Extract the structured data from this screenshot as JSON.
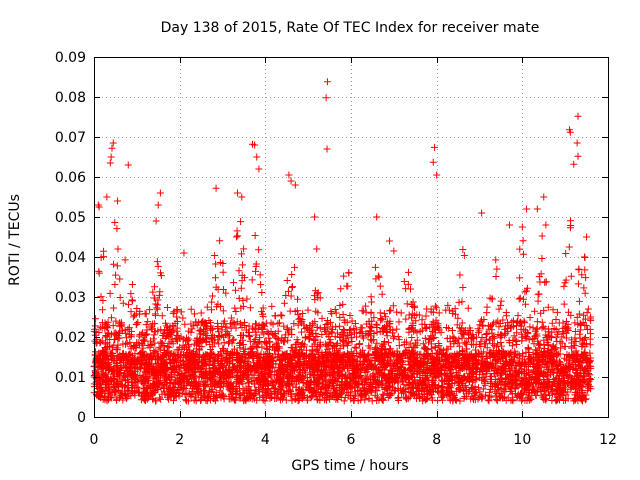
{
  "chart_data": {
    "type": "scatter",
    "title": "Day 138 of 2015, Rate Of TEC Index for receiver mate",
    "xlabel": "GPS time / hours",
    "ylabel": "ROTI / TECUs",
    "xlim": [
      0,
      12
    ],
    "ylim": [
      0,
      0.09
    ],
    "xticks": [
      0,
      2,
      4,
      6,
      8,
      10,
      12
    ],
    "xtick_labels": [
      "0",
      "2",
      "4",
      "6",
      "8",
      "10",
      "12"
    ],
    "yticks": [
      0,
      0.01,
      0.02,
      0.03,
      0.04,
      0.05,
      0.06,
      0.07,
      0.08,
      0.09
    ],
    "ytick_labels": [
      "0",
      "0.01",
      "0.02",
      "0.03",
      "0.04",
      "0.05",
      "0.06",
      "0.07",
      "0.08",
      "0.09"
    ],
    "grid": true,
    "marker": "+",
    "color": "#ff0000",
    "x_range_of_data": [
      0.0,
      11.6
    ],
    "series": [
      {
        "name": "ROTI",
        "points": [
          [
            5.45,
            0.0838
          ],
          [
            5.42,
            0.0798
          ],
          [
            5.44,
            0.067
          ],
          [
            11.3,
            0.0752
          ],
          [
            11.1,
            0.0718
          ],
          [
            11.12,
            0.0712
          ],
          [
            11.28,
            0.0685
          ],
          [
            11.3,
            0.0652
          ],
          [
            11.2,
            0.0632
          ],
          [
            7.95,
            0.0674
          ],
          [
            7.92,
            0.0637
          ],
          [
            8.0,
            0.0605
          ],
          [
            0.45,
            0.0685
          ],
          [
            0.42,
            0.0672
          ],
          [
            0.4,
            0.065
          ],
          [
            0.38,
            0.0635
          ],
          [
            0.8,
            0.063
          ],
          [
            3.7,
            0.0682
          ],
          [
            3.75,
            0.068
          ],
          [
            3.8,
            0.065
          ],
          [
            3.85,
            0.062
          ],
          [
            0.1,
            0.053
          ],
          [
            0.12,
            0.0525
          ],
          [
            0.3,
            0.055
          ],
          [
            0.55,
            0.054
          ],
          [
            2.85,
            0.0572
          ],
          [
            3.35,
            0.056
          ],
          [
            3.45,
            0.055
          ],
          [
            4.55,
            0.0605
          ],
          [
            4.6,
            0.059
          ],
          [
            4.7,
            0.058
          ],
          [
            5.15,
            0.05
          ],
          [
            5.2,
            0.042
          ],
          [
            6.6,
            0.05
          ],
          [
            6.9,
            0.044
          ],
          [
            7.0,
            0.0415
          ],
          [
            9.05,
            0.051
          ],
          [
            9.7,
            0.048
          ],
          [
            10.0,
            0.0475
          ],
          [
            10.1,
            0.052
          ],
          [
            10.35,
            0.052
          ],
          [
            10.5,
            0.055
          ],
          [
            10.55,
            0.048
          ],
          [
            11.5,
            0.045
          ],
          [
            11.45,
            0.04
          ],
          [
            2.1,
            0.041
          ],
          [
            1.55,
            0.056
          ],
          [
            1.5,
            0.053
          ],
          [
            1.45,
            0.049
          ]
        ]
      }
    ]
  }
}
